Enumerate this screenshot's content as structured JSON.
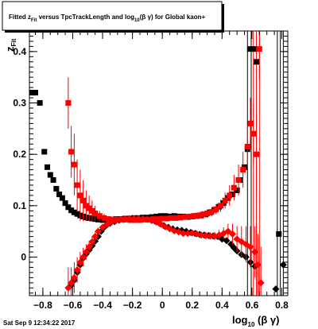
{
  "title_box": {
    "prefix": "Fitted  z",
    "prefix_sub": "Fit",
    "middle": " versus TpcTrackLength and log",
    "middle_sub": "10",
    "suffix": "(β γ) for Global kaon+"
  },
  "ylabel": {
    "main": "z",
    "sub": "Fit"
  },
  "xlabel": {
    "main": "log",
    "sub": "10",
    "suffix": " (β γ)"
  },
  "timestamp": "Sat Sep  9 12:34:22 2017",
  "chart_data": {
    "type": "scatter",
    "xlim": [
      -0.89,
      0.84
    ],
    "ylim": [
      -0.075,
      0.44
    ],
    "xticks": [
      -0.8,
      -0.6,
      -0.4,
      -0.2,
      0,
      0.2,
      0.4,
      0.6,
      0.8
    ],
    "xtick_labels": [
      "−0.8",
      "−0.6",
      "−0.4",
      "−0.2",
      "0",
      "0.2",
      "0.4",
      "0.6",
      "0.8"
    ],
    "yticks": [
      0,
      0.1,
      0.2,
      0.3,
      0.4
    ],
    "ytick_labels": [
      "0",
      "0.1",
      "0.2",
      "0.3",
      "0.4"
    ],
    "series": [
      {
        "marker": "square",
        "color": "#000000",
        "points": [
          [
            -0.87,
            0.32,
            0
          ],
          [
            -0.85,
            0.32,
            0
          ],
          [
            -0.82,
            0.3,
            0
          ],
          [
            -0.79,
            0.205,
            0
          ],
          [
            -0.77,
            0.175,
            0
          ],
          [
            -0.75,
            0.16,
            0
          ],
          [
            -0.73,
            0.15,
            0
          ],
          [
            -0.71,
            0.133,
            0
          ],
          [
            -0.69,
            0.122,
            0
          ],
          [
            -0.67,
            0.115,
            0
          ],
          [
            -0.65,
            0.105,
            0
          ],
          [
            -0.63,
            0.097,
            0
          ],
          [
            -0.61,
            0.091,
            0
          ],
          [
            -0.59,
            0.087,
            0
          ],
          [
            -0.57,
            0.084,
            0
          ],
          [
            -0.55,
            0.081,
            0
          ],
          [
            -0.53,
            0.079,
            0
          ],
          [
            -0.51,
            0.077,
            0
          ],
          [
            -0.49,
            0.076,
            0
          ],
          [
            -0.47,
            0.075,
            0
          ],
          [
            -0.45,
            0.074,
            0
          ],
          [
            -0.43,
            0.073,
            0
          ],
          [
            -0.4,
            0.072,
            0
          ],
          [
            -0.37,
            0.072,
            0
          ],
          [
            -0.34,
            0.073,
            0
          ],
          [
            -0.31,
            0.074,
            0
          ],
          [
            -0.28,
            0.074,
            0
          ],
          [
            -0.25,
            0.075,
            0
          ],
          [
            -0.22,
            0.075,
            0
          ],
          [
            -0.19,
            0.076,
            0
          ],
          [
            -0.16,
            0.076,
            0
          ],
          [
            -0.13,
            0.077,
            0
          ],
          [
            -0.1,
            0.077,
            0
          ],
          [
            -0.07,
            0.078,
            0
          ],
          [
            -0.04,
            0.079,
            0
          ],
          [
            -0.01,
            0.08,
            0
          ],
          [
            0.02,
            0.08,
            0
          ],
          [
            0.05,
            0.079,
            0
          ],
          [
            0.08,
            0.08,
            0
          ],
          [
            0.11,
            0.079,
            0
          ],
          [
            0.14,
            0.079,
            0
          ],
          [
            0.17,
            0.078,
            0
          ],
          [
            0.2,
            0.079,
            0
          ],
          [
            0.23,
            0.08,
            0
          ],
          [
            0.26,
            0.081,
            0
          ],
          [
            0.29,
            0.083,
            0
          ],
          [
            0.32,
            0.087,
            0
          ],
          [
            0.35,
            0.092,
            0
          ],
          [
            0.38,
            0.098,
            0
          ],
          [
            0.41,
            0.105,
            0
          ],
          [
            0.44,
            0.115,
            0
          ],
          [
            0.47,
            0.122,
            0
          ],
          [
            0.5,
            0.13,
            0
          ],
          [
            0.52,
            0.15,
            0
          ],
          [
            0.55,
            0.175,
            0
          ],
          [
            0.57,
            0.21,
            0
          ],
          [
            0.59,
            0.405,
            0
          ],
          [
            0.61,
            0.405,
            0
          ],
          [
            0.63,
            0.38,
            0
          ],
          [
            0.78,
            0.045,
            0
          ]
        ]
      },
      {
        "marker": "diamond",
        "color": "#000000",
        "points": [
          [
            -0.61,
            -0.055,
            0
          ],
          [
            -0.59,
            -0.045,
            0
          ],
          [
            -0.57,
            -0.03,
            0
          ],
          [
            -0.55,
            -0.015,
            0
          ],
          [
            -0.53,
            -0.002,
            0
          ],
          [
            -0.51,
            0.006,
            0
          ],
          [
            -0.49,
            0.014,
            0
          ],
          [
            -0.47,
            0.022,
            0
          ],
          [
            -0.45,
            0.031,
            0
          ],
          [
            -0.43,
            0.04,
            0
          ],
          [
            -0.41,
            0.05,
            0
          ],
          [
            -0.39,
            0.058,
            0
          ],
          [
            -0.37,
            0.063,
            0
          ],
          [
            -0.35,
            0.066,
            0
          ],
          [
            -0.32,
            0.069,
            0
          ],
          [
            -0.29,
            0.072,
            0
          ],
          [
            -0.26,
            0.073,
            0
          ],
          [
            -0.23,
            0.074,
            0
          ],
          [
            -0.2,
            0.075,
            0
          ],
          [
            -0.17,
            0.075,
            0
          ],
          [
            -0.14,
            0.075,
            0
          ],
          [
            -0.11,
            0.074,
            0
          ],
          [
            -0.08,
            0.073,
            0
          ],
          [
            -0.05,
            0.07,
            0
          ],
          [
            -0.02,
            0.066,
            0
          ],
          [
            0.01,
            0.061,
            0
          ],
          [
            0.04,
            0.058,
            0
          ],
          [
            0.07,
            0.055,
            0
          ],
          [
            0.1,
            0.053,
            0
          ],
          [
            0.13,
            0.052,
            0
          ],
          [
            0.16,
            0.05,
            0
          ],
          [
            0.19,
            0.048,
            0
          ],
          [
            0.22,
            0.046,
            0
          ],
          [
            0.25,
            0.044,
            0
          ],
          [
            0.28,
            0.043,
            0
          ],
          [
            0.31,
            0.042,
            0
          ],
          [
            0.34,
            0.041,
            0
          ],
          [
            0.37,
            0.04,
            0
          ],
          [
            0.4,
            0.035,
            0
          ],
          [
            0.43,
            0.032,
            0
          ],
          [
            0.46,
            0.025,
            0
          ],
          [
            0.48,
            0.018,
            0
          ],
          [
            0.5,
            0.012,
            0
          ],
          [
            0.53,
            0.005,
            0
          ],
          [
            0.56,
            0.0,
            0
          ],
          [
            0.59,
            -0.01,
            0
          ],
          [
            0.62,
            -0.018,
            0
          ],
          [
            0.76,
            -0.062,
            0
          ],
          [
            0.81,
            -0.015,
            0
          ]
        ]
      },
      {
        "marker": "square",
        "color": "#ff0000",
        "points": [
          [
            -0.63,
            0.3,
            0.05
          ],
          [
            -0.61,
            0.205,
            0.05
          ],
          [
            -0.59,
            0.18,
            0.06
          ],
          [
            -0.57,
            0.14,
            0.05
          ],
          [
            -0.55,
            0.12,
            0.05
          ],
          [
            -0.53,
            0.11,
            0.04
          ],
          [
            -0.51,
            0.1,
            0.03
          ],
          [
            -0.49,
            0.095,
            0.025
          ],
          [
            -0.47,
            0.09,
            0.02
          ],
          [
            -0.45,
            0.085,
            0.015
          ],
          [
            -0.42,
            0.08,
            0.01
          ],
          [
            -0.39,
            0.076,
            0.008
          ],
          [
            -0.36,
            0.074,
            0.006
          ],
          [
            -0.33,
            0.073,
            0.005
          ],
          [
            -0.3,
            0.073,
            0.005
          ],
          [
            -0.27,
            0.073,
            0.004
          ],
          [
            -0.24,
            0.073,
            0.004
          ],
          [
            -0.21,
            0.072,
            0.004
          ],
          [
            -0.18,
            0.072,
            0.004
          ],
          [
            -0.15,
            0.072,
            0.004
          ],
          [
            -0.12,
            0.073,
            0.004
          ],
          [
            -0.09,
            0.073,
            0.004
          ],
          [
            -0.06,
            0.074,
            0.004
          ],
          [
            -0.03,
            0.074,
            0.004
          ],
          [
            0.0,
            0.075,
            0.004
          ],
          [
            0.03,
            0.075,
            0.004
          ],
          [
            0.06,
            0.076,
            0.005
          ],
          [
            0.09,
            0.076,
            0.005
          ],
          [
            0.12,
            0.077,
            0.005
          ],
          [
            0.15,
            0.078,
            0.005
          ],
          [
            0.18,
            0.079,
            0.005
          ],
          [
            0.21,
            0.08,
            0.006
          ],
          [
            0.24,
            0.081,
            0.006
          ],
          [
            0.27,
            0.083,
            0.007
          ],
          [
            0.3,
            0.085,
            0.008
          ],
          [
            0.33,
            0.088,
            0.009
          ],
          [
            0.36,
            0.093,
            0.01
          ],
          [
            0.39,
            0.1,
            0.012
          ],
          [
            0.42,
            0.11,
            0.015
          ],
          [
            0.45,
            0.12,
            0.02
          ],
          [
            0.48,
            0.135,
            0.025
          ],
          [
            0.51,
            0.15,
            0.03
          ],
          [
            0.54,
            0.17,
            0.035
          ],
          [
            0.57,
            0.215,
            0.04
          ],
          [
            0.59,
            0.26,
            0.05
          ],
          [
            0.61,
            0.24,
            0.06
          ],
          [
            0.63,
            0.2,
            0.08
          ],
          [
            0.65,
            0.405,
            0.06
          ]
        ]
      },
      {
        "marker": "diamond",
        "color": "#ff0000",
        "points": [
          [
            -0.63,
            -0.06,
            0.04
          ],
          [
            -0.61,
            -0.05,
            0.03
          ],
          [
            -0.59,
            -0.04,
            0.03
          ],
          [
            -0.57,
            -0.025,
            0.025
          ],
          [
            -0.55,
            -0.01,
            0.02
          ],
          [
            -0.53,
            0.0,
            0.018
          ],
          [
            -0.51,
            0.01,
            0.015
          ],
          [
            -0.49,
            0.02,
            0.012
          ],
          [
            -0.47,
            0.03,
            0.01
          ],
          [
            -0.45,
            0.04,
            0.008
          ],
          [
            -0.43,
            0.05,
            0.007
          ],
          [
            -0.4,
            0.058,
            0.006
          ],
          [
            -0.37,
            0.064,
            0.005
          ],
          [
            -0.34,
            0.068,
            0.005
          ],
          [
            -0.31,
            0.071,
            0.004
          ],
          [
            -0.28,
            0.073,
            0.004
          ],
          [
            -0.25,
            0.074,
            0.004
          ],
          [
            -0.22,
            0.075,
            0.004
          ],
          [
            -0.19,
            0.075,
            0.004
          ],
          [
            -0.16,
            0.075,
            0.004
          ],
          [
            -0.13,
            0.074,
            0.004
          ],
          [
            -0.1,
            0.073,
            0.004
          ],
          [
            -0.07,
            0.071,
            0.004
          ],
          [
            -0.04,
            0.068,
            0.004
          ],
          [
            -0.01,
            0.064,
            0.004
          ],
          [
            0.02,
            0.059,
            0.004
          ],
          [
            0.05,
            0.055,
            0.004
          ],
          [
            0.08,
            0.051,
            0.004
          ],
          [
            0.11,
            0.049,
            0.004
          ],
          [
            0.14,
            0.046,
            0.005
          ],
          [
            0.17,
            0.046,
            0.005
          ],
          [
            0.2,
            0.047,
            0.005
          ],
          [
            0.23,
            0.045,
            0.005
          ],
          [
            0.26,
            0.043,
            0.006
          ],
          [
            0.29,
            0.042,
            0.006
          ],
          [
            0.32,
            0.041,
            0.007
          ],
          [
            0.35,
            0.041,
            0.008
          ],
          [
            0.38,
            0.043,
            0.01
          ],
          [
            0.41,
            0.046,
            0.012
          ],
          [
            0.44,
            0.05,
            0.015
          ],
          [
            0.47,
            0.045,
            0.02
          ],
          [
            0.5,
            0.035,
            0.025
          ],
          [
            0.53,
            0.03,
            0.03
          ],
          [
            0.56,
            0.025,
            0.035
          ],
          [
            0.59,
            0.02,
            0.04
          ],
          [
            0.62,
            0.01,
            0.05
          ],
          [
            0.64,
            -0.015,
            0.06
          ],
          [
            0.66,
            -0.05,
            0.07
          ]
        ]
      }
    ],
    "error_lines": [
      {
        "x": 0.57,
        "low": -0.075,
        "high": 0.44,
        "color": "#000000"
      },
      {
        "x": 0.595,
        "low": -0.075,
        "high": 0.44,
        "color": "#000000"
      },
      {
        "x": 0.61,
        "low": -0.075,
        "high": 0.44,
        "color": "#ff0000"
      },
      {
        "x": 0.63,
        "low": -0.075,
        "high": 0.44,
        "color": "#ff0000"
      },
      {
        "x": 0.65,
        "low": -0.075,
        "high": 0.44,
        "color": "#ff0000"
      },
      {
        "x": 0.77,
        "low": -0.075,
        "high": 0.44,
        "color": "#000000"
      },
      {
        "x": 0.79,
        "low": -0.075,
        "high": 0.44,
        "color": "#000000"
      },
      {
        "x": 0.81,
        "low": -0.075,
        "high": 0.44,
        "color": "#000000"
      }
    ]
  }
}
